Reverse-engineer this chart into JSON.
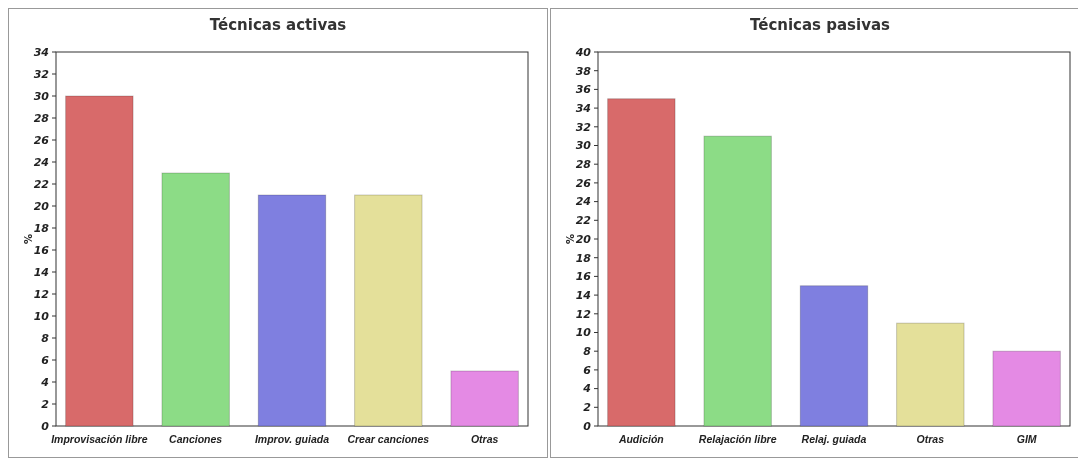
{
  "chart_data": [
    {
      "type": "bar",
      "title": "Técnicas activas",
      "ylabel": "%",
      "categories": [
        "Improvisación libre",
        "Canciones",
        "Improv. guiada",
        "Crear canciones",
        "Otras"
      ],
      "values": [
        30,
        23,
        21,
        21,
        5
      ],
      "colors": [
        "#d86a6a",
        "#8cdc86",
        "#7f7fe0",
        "#e4e09a",
        "#e48ae4"
      ],
      "ylim": [
        0,
        34
      ],
      "yticks": [
        0,
        2,
        4,
        6,
        8,
        10,
        12,
        14,
        16,
        18,
        20,
        22,
        24,
        26,
        28,
        30,
        32,
        34
      ],
      "grid": false
    },
    {
      "type": "bar",
      "title": "Técnicas pasivas",
      "ylabel": "%",
      "categories": [
        "Audición",
        "Relajación libre",
        "Relaj. guiada",
        "Otras",
        "GIM"
      ],
      "values": [
        35,
        31,
        15,
        11,
        8
      ],
      "colors": [
        "#d86a6a",
        "#8cdc86",
        "#7f7fe0",
        "#e4e09a",
        "#e48ae4"
      ],
      "ylim": [
        0,
        40
      ],
      "yticks": [
        0,
        2,
        4,
        6,
        8,
        10,
        12,
        14,
        16,
        18,
        20,
        22,
        24,
        26,
        28,
        30,
        32,
        34,
        36,
        38,
        40
      ],
      "grid": false
    }
  ]
}
